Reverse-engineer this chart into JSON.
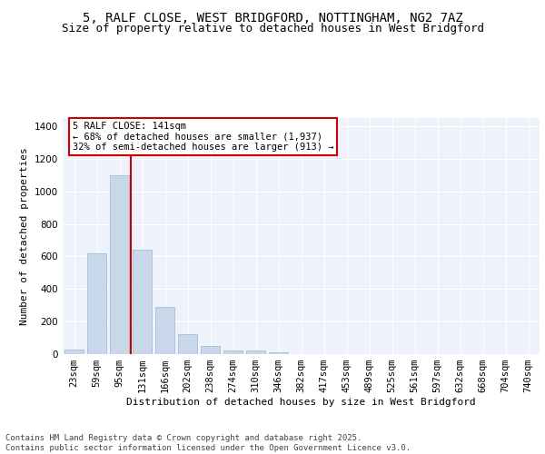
{
  "title_line1": "5, RALF CLOSE, WEST BRIDGFORD, NOTTINGHAM, NG2 7AZ",
  "title_line2": "Size of property relative to detached houses in West Bridgford",
  "xlabel": "Distribution of detached houses by size in West Bridgford",
  "ylabel": "Number of detached properties",
  "categories": [
    "23sqm",
    "59sqm",
    "95sqm",
    "131sqm",
    "166sqm",
    "202sqm",
    "238sqm",
    "274sqm",
    "310sqm",
    "346sqm",
    "382sqm",
    "417sqm",
    "453sqm",
    "489sqm",
    "525sqm",
    "561sqm",
    "597sqm",
    "632sqm",
    "668sqm",
    "704sqm",
    "740sqm"
  ],
  "values": [
    30,
    620,
    1100,
    640,
    290,
    120,
    48,
    25,
    20,
    10,
    0,
    0,
    0,
    0,
    0,
    0,
    0,
    0,
    0,
    0,
    0
  ],
  "bar_color": "#c8d8ea",
  "bar_edge_color": "#9ab8d0",
  "vline_x": 2.5,
  "vline_color": "#cc0000",
  "annotation_text": "5 RALF CLOSE: 141sqm\n← 68% of detached houses are smaller (1,937)\n32% of semi-detached houses are larger (913) →",
  "annotation_box_color": "#cc0000",
  "annotation_bg": "#ffffff",
  "ylim": [
    0,
    1450
  ],
  "yticks": [
    0,
    200,
    400,
    600,
    800,
    1000,
    1200,
    1400
  ],
  "bg_color": "#eef2fb",
  "grid_color": "#ffffff",
  "footer_text": "Contains HM Land Registry data © Crown copyright and database right 2025.\nContains public sector information licensed under the Open Government Licence v3.0.",
  "title_fontsize": 10,
  "subtitle_fontsize": 9,
  "axis_label_fontsize": 8,
  "tick_fontsize": 7.5,
  "annotation_fontsize": 7.5,
  "footer_fontsize": 6.5
}
